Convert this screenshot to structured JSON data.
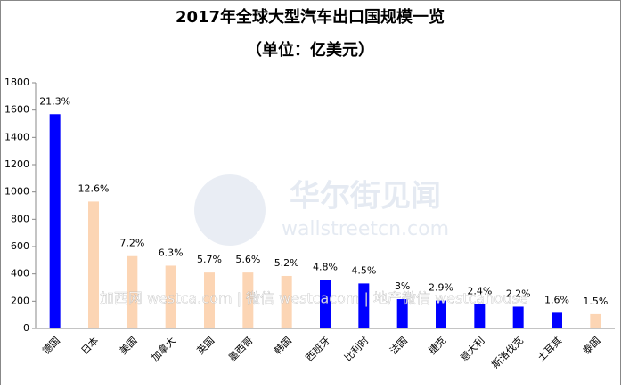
{
  "chart_data": {
    "type": "bar",
    "title": "2017年全球大型汽车出口国规模一览",
    "subtitle": "（单位：亿美元）",
    "categories": [
      "德国",
      "日本",
      "美国",
      "加拿大",
      "英国",
      "墨西哥",
      "韩国",
      "西班牙",
      "比利时",
      "法国",
      "捷克",
      "意大利",
      "斯洛伐克",
      "土耳其",
      "泰国"
    ],
    "values": [
      1570,
      930,
      530,
      460,
      410,
      410,
      385,
      355,
      330,
      215,
      205,
      180,
      160,
      115,
      105
    ],
    "share_labels": [
      "21.3%",
      "12.6%",
      "7.2%",
      "6.3%",
      "5.7%",
      "5.6%",
      "5.2%",
      "4.8%",
      "4.5%",
      "3%",
      "2.9%",
      "2.4%",
      "2.2%",
      "1.6%",
      "1.5%"
    ],
    "colors": [
      "#0000ff",
      "#fcd5b4",
      "#fcd5b4",
      "#fcd5b4",
      "#fcd5b4",
      "#fcd5b4",
      "#fcd5b4",
      "#0000ff",
      "#0000ff",
      "#0000ff",
      "#0000ff",
      "#0000ff",
      "#0000ff",
      "#0000ff",
      "#fcd5b4"
    ],
    "ylim": [
      0,
      1800
    ],
    "yticks": [
      0,
      200,
      400,
      600,
      800,
      1000,
      1200,
      1400,
      1600,
      1800
    ],
    "watermarks": [
      "华尔街见闻",
      "wallstreetcn.com",
      "加西网 westca.com | 微信 westcacom | 地产微信 westcahouse"
    ]
  }
}
